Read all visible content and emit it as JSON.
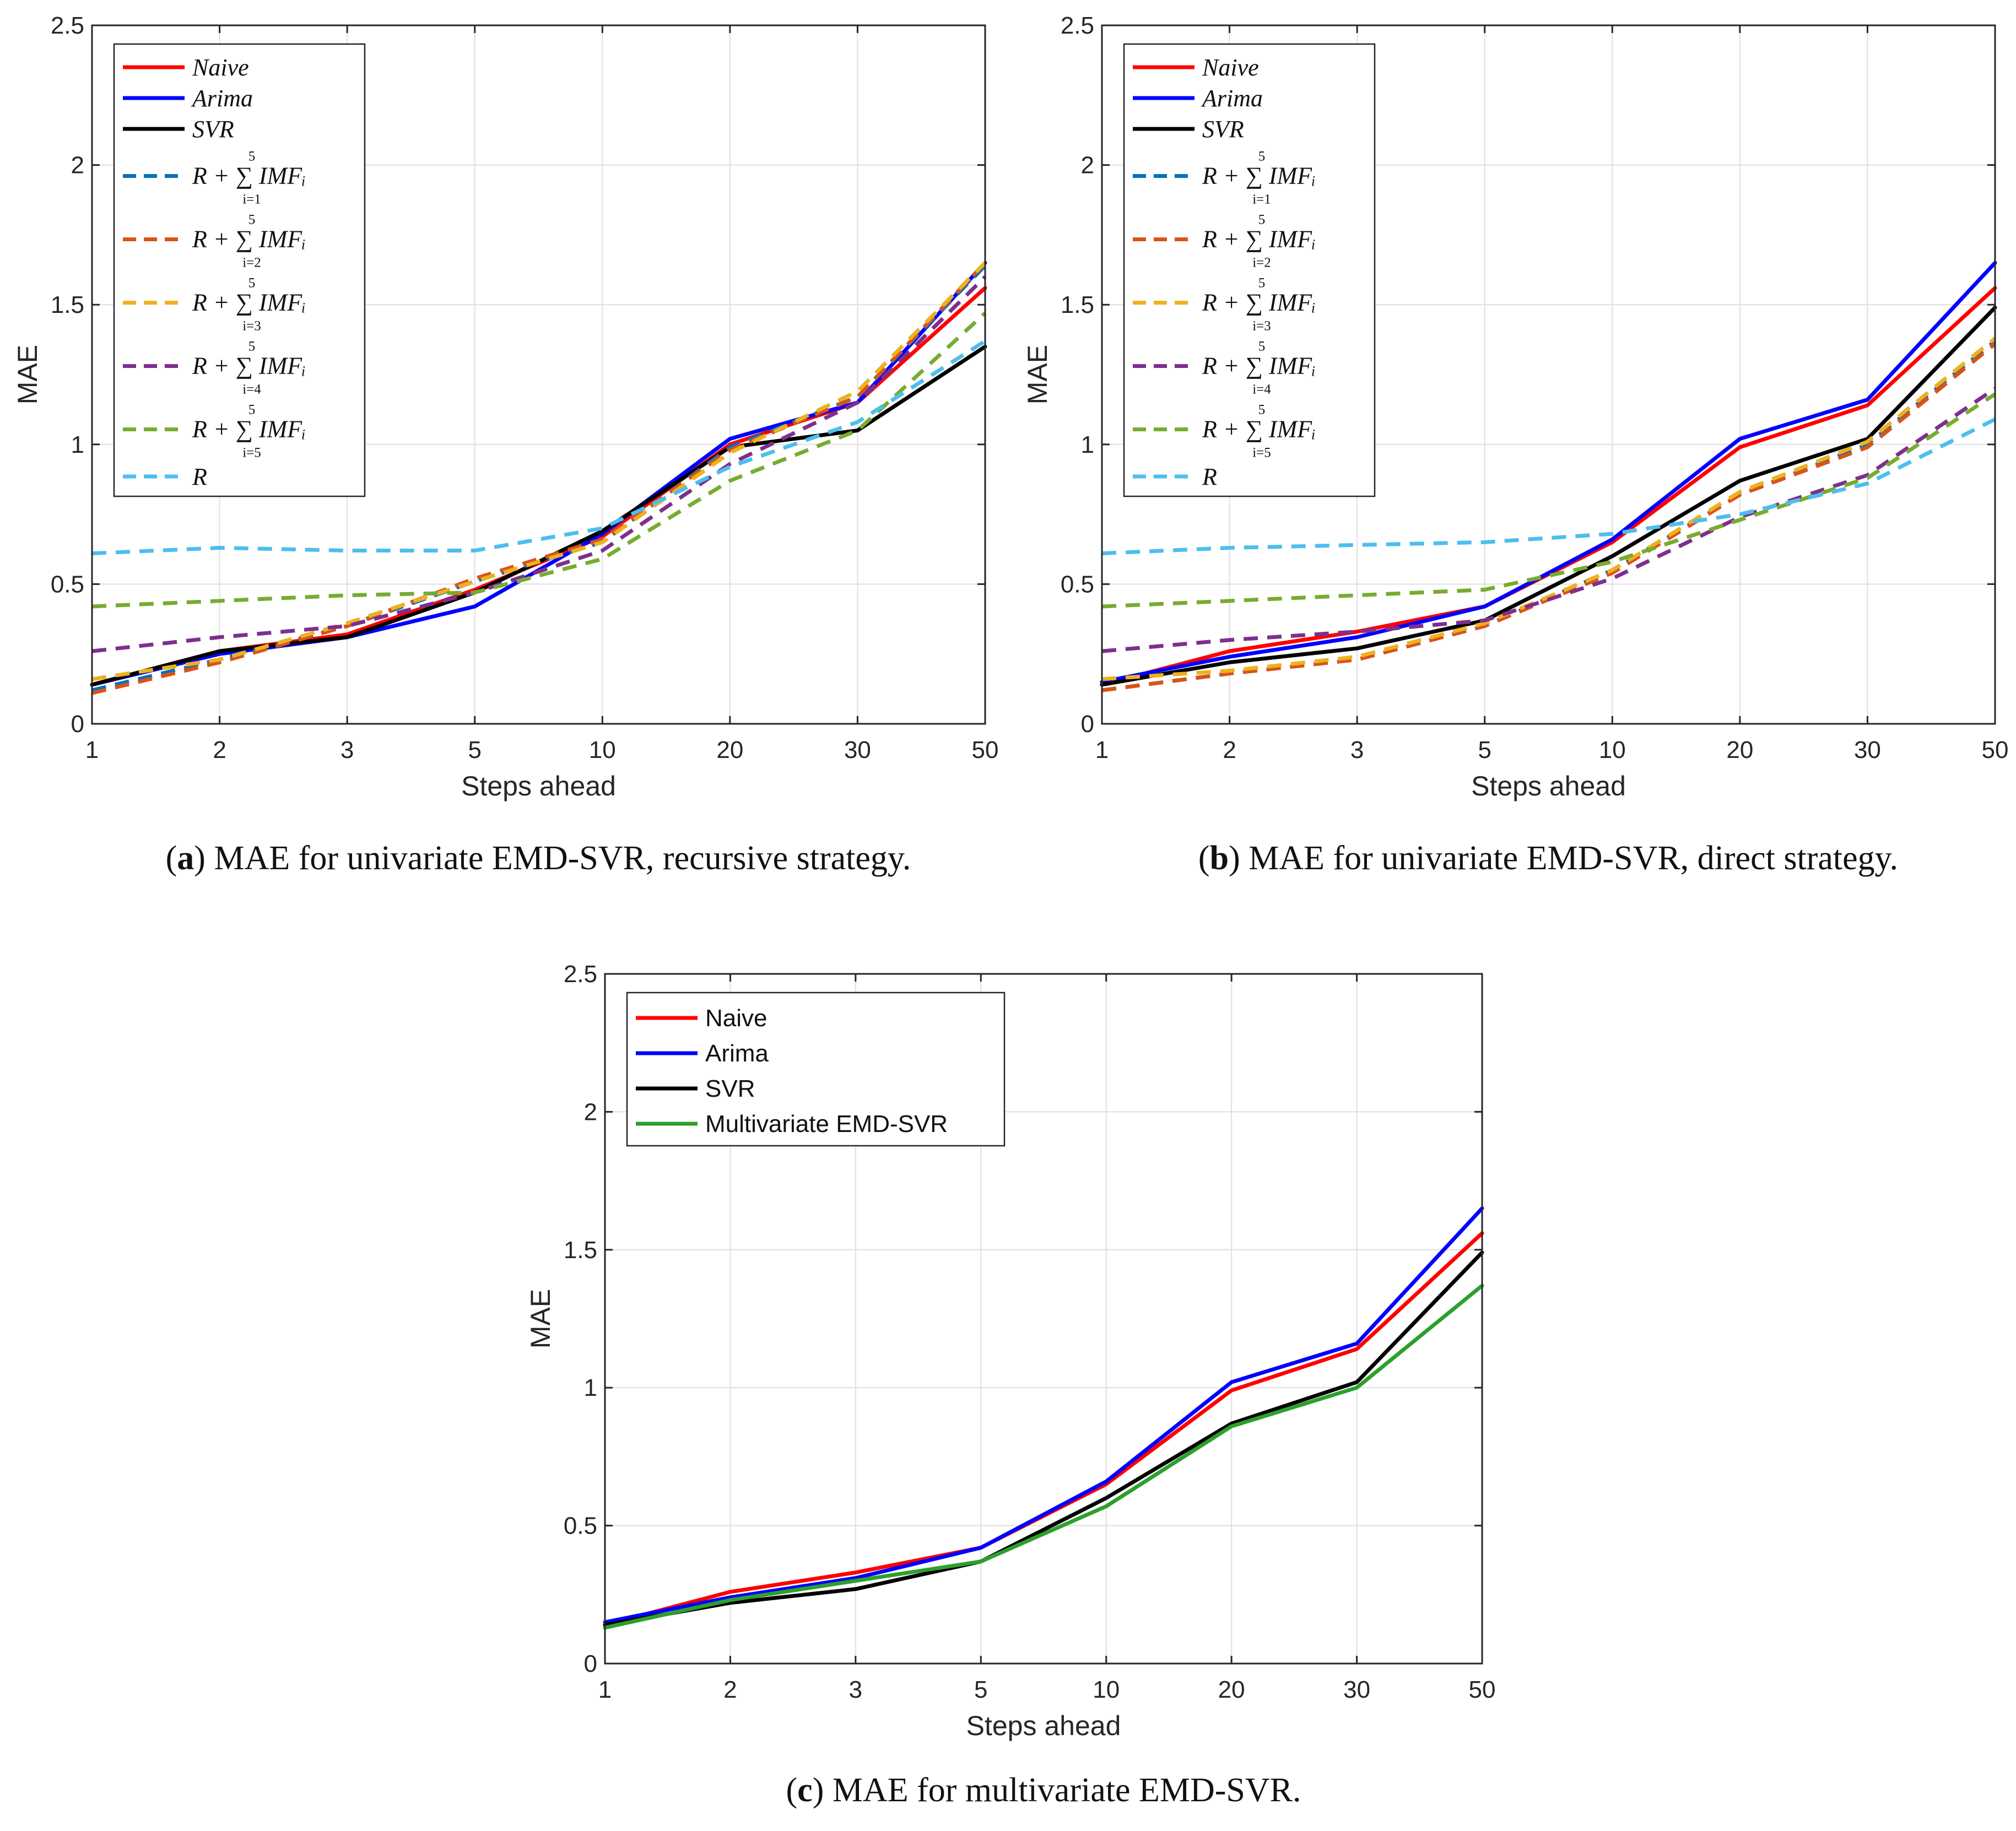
{
  "chart_data": [
    {
      "type": "line",
      "caption": {
        "letter": "a",
        "text": "MAE for univariate EMD-SVR, recursive strategy."
      },
      "xlabel": "Steps ahead",
      "ylabel": "MAE",
      "categories": [
        "1",
        "2",
        "3",
        "5",
        "10",
        "20",
        "30",
        "50"
      ],
      "yticks": [
        "0",
        "0.5",
        "1",
        "1.5",
        "2",
        "2.5"
      ],
      "ylim": [
        0,
        2.5
      ],
      "grid": true,
      "legend_position": "top-left",
      "legend_style": "math",
      "series": [
        {
          "name": "Naive",
          "label": "Naive",
          "color": "#ff0000",
          "dash": false,
          "values": [
            0.14,
            0.26,
            0.32,
            0.48,
            0.67,
            1.0,
            1.15,
            1.56
          ]
        },
        {
          "name": "Arima",
          "label": "Arima",
          "color": "#0000ff",
          "dash": false,
          "values": [
            0.14,
            0.25,
            0.31,
            0.42,
            0.68,
            1.02,
            1.15,
            1.65
          ]
        },
        {
          "name": "SVR",
          "label": "SVR",
          "color": "#000000",
          "dash": false,
          "values": [
            0.14,
            0.26,
            0.31,
            0.47,
            0.69,
            0.99,
            1.05,
            1.35
          ]
        },
        {
          "name": "R+sum i=1",
          "label": "R + ∑ IMFᵢ",
          "sub": "i=1",
          "sup": "5",
          "color": "#0072bd",
          "dash": true,
          "values": [
            0.12,
            0.23,
            0.35,
            0.51,
            0.65,
            0.99,
            1.17,
            1.64
          ]
        },
        {
          "name": "R+sum i=2",
          "label": "R + ∑ IMFᵢ",
          "sub": "i=2",
          "sup": "5",
          "color": "#d95319",
          "dash": true,
          "values": [
            0.11,
            0.22,
            0.35,
            0.52,
            0.66,
            0.98,
            1.17,
            1.65
          ]
        },
        {
          "name": "R+sum i=3",
          "label": "R + ∑ IMFᵢ",
          "sub": "i=3",
          "sup": "5",
          "color": "#edb120",
          "dash": true,
          "values": [
            0.16,
            0.23,
            0.36,
            0.51,
            0.65,
            0.97,
            1.19,
            1.65
          ]
        },
        {
          "name": "R+sum i=4",
          "label": "R + ∑ IMFᵢ",
          "sub": "i=4",
          "sup": "5",
          "color": "#7e2f8e",
          "dash": true,
          "values": [
            0.26,
            0.31,
            0.35,
            0.47,
            0.62,
            0.93,
            1.15,
            1.6
          ]
        },
        {
          "name": "R+sum i=5",
          "label": "R + ∑ IMFᵢ",
          "sub": "i=5",
          "sup": "5",
          "color": "#77ac30",
          "dash": true,
          "values": [
            0.42,
            0.44,
            0.46,
            0.47,
            0.59,
            0.87,
            1.05,
            1.47
          ]
        },
        {
          "name": "R",
          "label": "R",
          "color": "#4dbeee",
          "dash": true,
          "values": [
            0.61,
            0.63,
            0.62,
            0.62,
            0.7,
            0.92,
            1.08,
            1.37
          ]
        }
      ]
    },
    {
      "type": "line",
      "caption": {
        "letter": "b",
        "text": "MAE for univariate EMD-SVR, direct strategy."
      },
      "xlabel": "Steps ahead",
      "ylabel": "MAE",
      "categories": [
        "1",
        "2",
        "3",
        "5",
        "10",
        "20",
        "30",
        "50"
      ],
      "yticks": [
        "0",
        "0.5",
        "1",
        "1.5",
        "2",
        "2.5"
      ],
      "ylim": [
        0,
        2.5
      ],
      "grid": true,
      "legend_position": "top-left",
      "legend_style": "math",
      "series": [
        {
          "name": "Naive",
          "label": "Naive",
          "color": "#ff0000",
          "dash": false,
          "values": [
            0.14,
            0.26,
            0.33,
            0.42,
            0.65,
            0.99,
            1.14,
            1.56
          ]
        },
        {
          "name": "Arima",
          "label": "Arima",
          "color": "#0000ff",
          "dash": false,
          "values": [
            0.15,
            0.24,
            0.31,
            0.42,
            0.66,
            1.02,
            1.16,
            1.65
          ]
        },
        {
          "name": "SVR",
          "label": "SVR",
          "color": "#000000",
          "dash": false,
          "values": [
            0.14,
            0.22,
            0.27,
            0.37,
            0.6,
            0.87,
            1.02,
            1.49
          ]
        },
        {
          "name": "R+sum i=1",
          "label": "R + ∑ IMFᵢ",
          "sub": "i=1",
          "sup": "5",
          "color": "#0072bd",
          "dash": true,
          "values": [
            0.12,
            0.18,
            0.23,
            0.35,
            0.55,
            0.82,
            1.0,
            1.37
          ]
        },
        {
          "name": "R+sum i=2",
          "label": "R + ∑ IMFᵢ",
          "sub": "i=2",
          "sup": "5",
          "color": "#d95319",
          "dash": true,
          "values": [
            0.12,
            0.18,
            0.23,
            0.35,
            0.54,
            0.82,
            0.99,
            1.36
          ]
        },
        {
          "name": "R+sum i=3",
          "label": "R + ∑ IMFᵢ",
          "sub": "i=3",
          "sup": "5",
          "color": "#edb120",
          "dash": true,
          "values": [
            0.16,
            0.19,
            0.24,
            0.36,
            0.55,
            0.83,
            1.01,
            1.38
          ]
        },
        {
          "name": "R+sum i=4",
          "label": "R + ∑ IMFᵢ",
          "sub": "i=4",
          "sup": "5",
          "color": "#7e2f8e",
          "dash": true,
          "values": [
            0.26,
            0.3,
            0.33,
            0.37,
            0.52,
            0.74,
            0.89,
            1.2
          ]
        },
        {
          "name": "R+sum i=5",
          "label": "R + ∑ IMFᵢ",
          "sub": "i=5",
          "sup": "5",
          "color": "#77ac30",
          "dash": true,
          "values": [
            0.42,
            0.44,
            0.46,
            0.48,
            0.58,
            0.73,
            0.88,
            1.18
          ]
        },
        {
          "name": "R",
          "label": "R",
          "color": "#4dbeee",
          "dash": true,
          "values": [
            0.61,
            0.63,
            0.64,
            0.65,
            0.68,
            0.75,
            0.86,
            1.09
          ]
        }
      ]
    },
    {
      "type": "line",
      "caption": {
        "letter": "c",
        "text": "MAE for multivariate EMD-SVR."
      },
      "xlabel": "Steps ahead",
      "ylabel": "MAE",
      "categories": [
        "1",
        "2",
        "3",
        "5",
        "10",
        "20",
        "30",
        "50"
      ],
      "yticks": [
        "0",
        "0.5",
        "1",
        "1.5",
        "2",
        "2.5"
      ],
      "ylim": [
        0,
        2.5
      ],
      "grid": true,
      "legend_position": "top-left",
      "legend_style": "plain",
      "series": [
        {
          "name": "Naive",
          "label": "Naive",
          "color": "#ff0000",
          "dash": false,
          "values": [
            0.14,
            0.26,
            0.33,
            0.42,
            0.65,
            0.99,
            1.14,
            1.56
          ]
        },
        {
          "name": "Arima",
          "label": "Arima",
          "color": "#0000ff",
          "dash": false,
          "values": [
            0.15,
            0.24,
            0.31,
            0.42,
            0.66,
            1.02,
            1.16,
            1.65
          ]
        },
        {
          "name": "SVR",
          "label": "SVR",
          "color": "#000000",
          "dash": false,
          "values": [
            0.14,
            0.22,
            0.27,
            0.37,
            0.6,
            0.87,
            1.02,
            1.49
          ]
        },
        {
          "name": "Multivariate EMD-SVR",
          "label": "Multivariate EMD-SVR",
          "color": "#2ca02c",
          "dash": false,
          "values": [
            0.13,
            0.23,
            0.3,
            0.37,
            0.57,
            0.86,
            1.0,
            1.37
          ]
        }
      ]
    }
  ]
}
